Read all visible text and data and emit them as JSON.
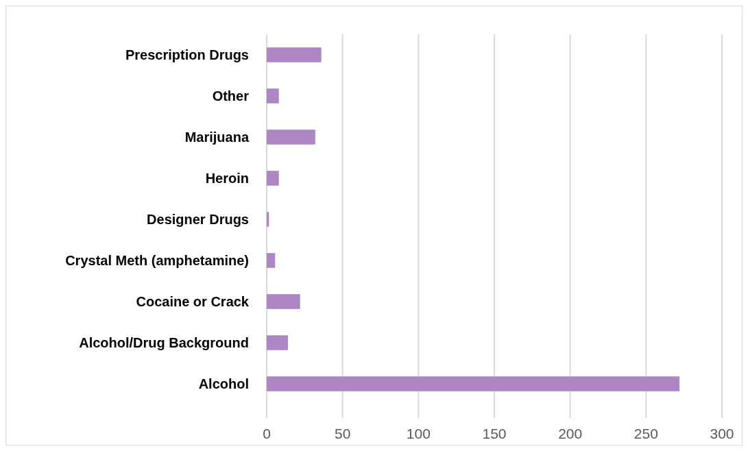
{
  "chart_data": {
    "type": "bar",
    "orientation": "horizontal",
    "categories": [
      "Prescription Drugs",
      "Other",
      "Marijuana",
      "Heroin",
      "Designer Drugs",
      "Crystal Meth (amphetamine)",
      "Cocaine or Crack",
      "Alcohol/Drug Background",
      "Alcohol"
    ],
    "values": [
      36,
      8,
      32,
      8,
      1.5,
      5.5,
      22,
      14,
      272
    ],
    "color": "#ae86c6",
    "xlim": [
      0,
      300
    ],
    "xticks": [
      0,
      50,
      100,
      150,
      200,
      250,
      300
    ],
    "grid": "x"
  }
}
